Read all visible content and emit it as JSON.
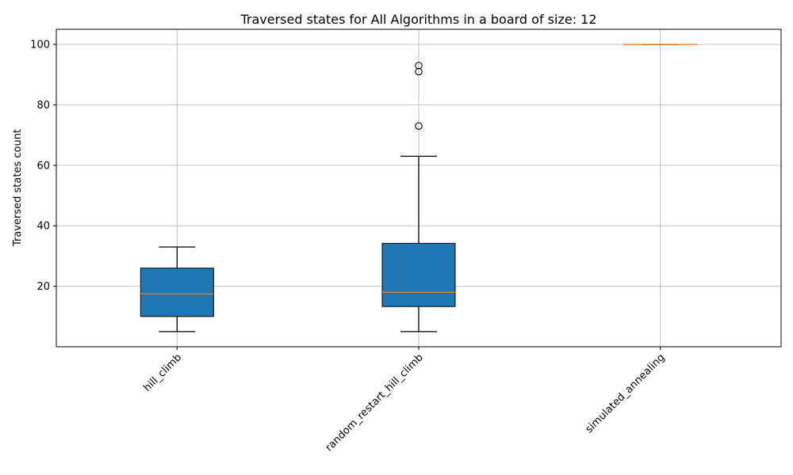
{
  "chart_data": {
    "type": "box",
    "title": "Traversed states for All Algorithms in a board of size: 12",
    "xlabel": "",
    "ylabel": "Traversed states count",
    "ylim": [
      0,
      105
    ],
    "yticks": [
      20,
      40,
      60,
      80,
      100
    ],
    "grid": true,
    "colors": {
      "box": "#1f77b4",
      "median": "#ff7f0e",
      "edge": "#000000",
      "grid": "#b0b0b0"
    },
    "categories": [
      "hill_climb",
      "random_restart_hill_climb",
      "simulated_annealing"
    ],
    "boxes": [
      {
        "name": "hill_climb",
        "whislo": 5,
        "q1": 10,
        "med": 17.5,
        "q3": 26,
        "whishi": 33,
        "fliers": []
      },
      {
        "name": "random_restart_hill_climb",
        "whislo": 5,
        "q1": 13.3,
        "med": 18,
        "q3": 34.2,
        "whishi": 63,
        "fliers": [
          73,
          91,
          93
        ]
      },
      {
        "name": "simulated_annealing",
        "whislo": 100,
        "q1": 100,
        "med": 100,
        "q3": 100,
        "whishi": 100,
        "fliers": []
      }
    ]
  }
}
